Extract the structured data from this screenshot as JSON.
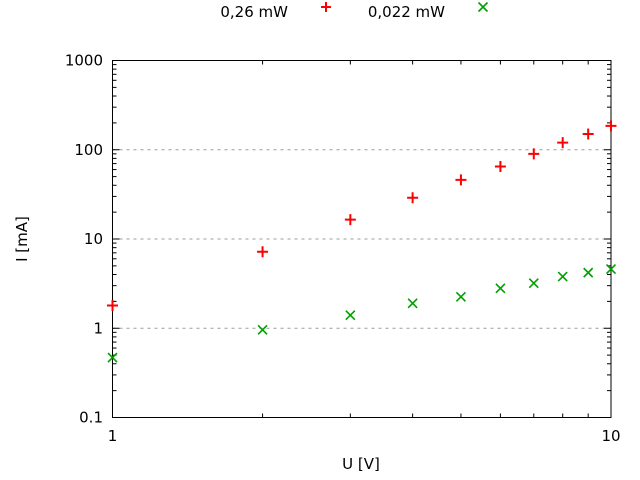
{
  "chart_data": {
    "type": "scatter",
    "title": "",
    "xlabel": "U [V]",
    "ylabel": "I [mA]",
    "x_scale": "log",
    "y_scale": "log",
    "xlim": [
      1,
      10
    ],
    "ylim": [
      0.1,
      1000
    ],
    "xticks": [
      1,
      10
    ],
    "xtick_labels": [
      "1",
      "10"
    ],
    "yticks": [
      0.1,
      1,
      10,
      100,
      1000
    ],
    "ytick_labels": [
      "0.1",
      "1",
      "10",
      "100",
      "1000"
    ],
    "grid_y": [
      1,
      10,
      100
    ],
    "grid_on": true,
    "legend_position": "top-center",
    "colors": {
      "background": "#ffffff",
      "axis": "#000000",
      "text": "#000000",
      "grid": "#9b9b9b"
    },
    "series": [
      {
        "name": "0,26 mW",
        "marker": "plus",
        "color": "#ff0000",
        "x": [
          1,
          2,
          3,
          4,
          5,
          6,
          7,
          8,
          9,
          10
        ],
        "y": [
          1.8,
          7.2,
          16.5,
          29,
          46,
          65,
          90,
          120,
          150,
          185
        ]
      },
      {
        "name": "0,022 mW",
        "marker": "x",
        "color": "#00a000",
        "x": [
          1,
          2,
          3,
          4,
          5,
          6,
          7,
          8,
          9,
          10
        ],
        "y": [
          0.47,
          0.96,
          1.4,
          1.9,
          2.25,
          2.8,
          3.2,
          3.8,
          4.2,
          4.6
        ]
      }
    ]
  }
}
